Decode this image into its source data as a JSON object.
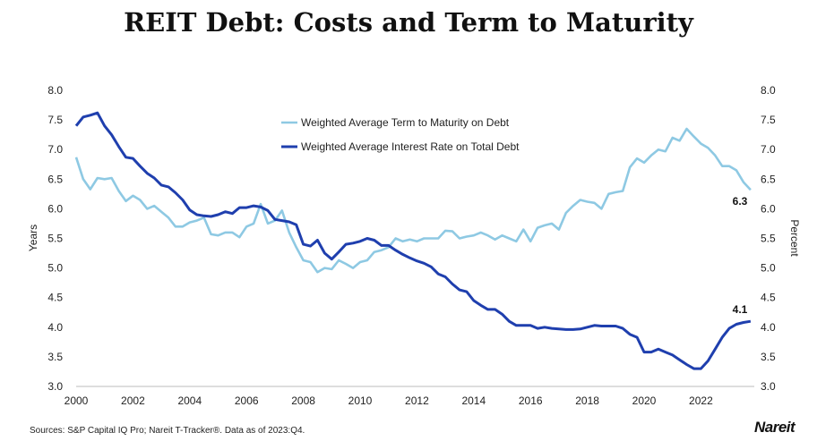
{
  "chart_data": {
    "type": "line",
    "title": "REIT Debt: Costs and Term to Maturity",
    "ylabel_left": "Years",
    "ylabel_right": "Percent",
    "ylim": [
      3.0,
      8.0
    ],
    "xlim": [
      2000,
      2024
    ],
    "x_ticks": [
      "2000",
      "2002",
      "2004",
      "2006",
      "2008",
      "2010",
      "2012",
      "2014",
      "2016",
      "2018",
      "2020",
      "2022"
    ],
    "y_ticks": [
      "3.0",
      "3.5",
      "4.0",
      "4.5",
      "5.0",
      "5.5",
      "6.0",
      "6.5",
      "7.0",
      "7.5",
      "8.0"
    ],
    "grid": false,
    "legend_position": "top-center",
    "series": [
      {
        "name": "Weighted Average Term to Maturity on Debt",
        "color": "#8ec9e3",
        "end_label": "6.3",
        "values": [
          6.87,
          6.5,
          6.33,
          6.52,
          6.5,
          6.52,
          6.3,
          6.13,
          6.22,
          6.15,
          6.0,
          6.05,
          5.95,
          5.85,
          5.7,
          5.7,
          5.77,
          5.8,
          5.85,
          5.57,
          5.55,
          5.6,
          5.6,
          5.52,
          5.7,
          5.75,
          6.08,
          5.75,
          5.8,
          5.97,
          5.6,
          5.35,
          5.13,
          5.1,
          4.93,
          5.0,
          4.98,
          5.13,
          5.07,
          5.0,
          5.1,
          5.13,
          5.27,
          5.3,
          5.35,
          5.5,
          5.45,
          5.48,
          5.45,
          5.5,
          5.5,
          5.5,
          5.63,
          5.62,
          5.5,
          5.53,
          5.55,
          5.6,
          5.55,
          5.48,
          5.55,
          5.5,
          5.45,
          5.65,
          5.45,
          5.68,
          5.72,
          5.75,
          5.65,
          5.93,
          6.05,
          6.15,
          6.12,
          6.1,
          6.0,
          6.25,
          6.28,
          6.3,
          6.7,
          6.85,
          6.78,
          6.9,
          7.0,
          6.97,
          7.2,
          7.15,
          7.35,
          7.22,
          7.1,
          7.03,
          6.9,
          6.72,
          6.72,
          6.65,
          6.45,
          6.32
        ]
      },
      {
        "name": "Weighted Average Interest Rate on Total Debt",
        "color": "#1f3fae",
        "end_label": "4.1",
        "values": [
          7.4,
          7.55,
          7.58,
          7.62,
          7.4,
          7.25,
          7.05,
          6.87,
          6.85,
          6.72,
          6.6,
          6.52,
          6.4,
          6.37,
          6.27,
          6.15,
          5.98,
          5.9,
          5.88,
          5.87,
          5.9,
          5.95,
          5.92,
          6.02,
          6.02,
          6.05,
          6.03,
          5.97,
          5.82,
          5.8,
          5.78,
          5.73,
          5.4,
          5.37,
          5.47,
          5.25,
          5.15,
          5.27,
          5.4,
          5.42,
          5.45,
          5.5,
          5.47,
          5.38,
          5.38,
          5.3,
          5.23,
          5.17,
          5.12,
          5.08,
          5.02,
          4.9,
          4.85,
          4.73,
          4.63,
          4.6,
          4.45,
          4.37,
          4.3,
          4.3,
          4.22,
          4.1,
          4.03,
          4.03,
          4.03,
          3.98,
          4.0,
          3.98,
          3.97,
          3.96,
          3.96,
          3.97,
          4.0,
          4.03,
          4.02,
          4.02,
          4.02,
          3.98,
          3.88,
          3.83,
          3.58,
          3.58,
          3.63,
          3.58,
          3.53,
          3.45,
          3.37,
          3.3,
          3.3,
          3.43,
          3.63,
          3.83,
          3.98,
          4.05,
          4.08,
          4.1
        ]
      }
    ]
  },
  "footer": {
    "source": "Sources: S&P Capital IQ Pro; Nareit T-Tracker®. Data as of 2023:Q4.",
    "logo": "Nareit"
  }
}
